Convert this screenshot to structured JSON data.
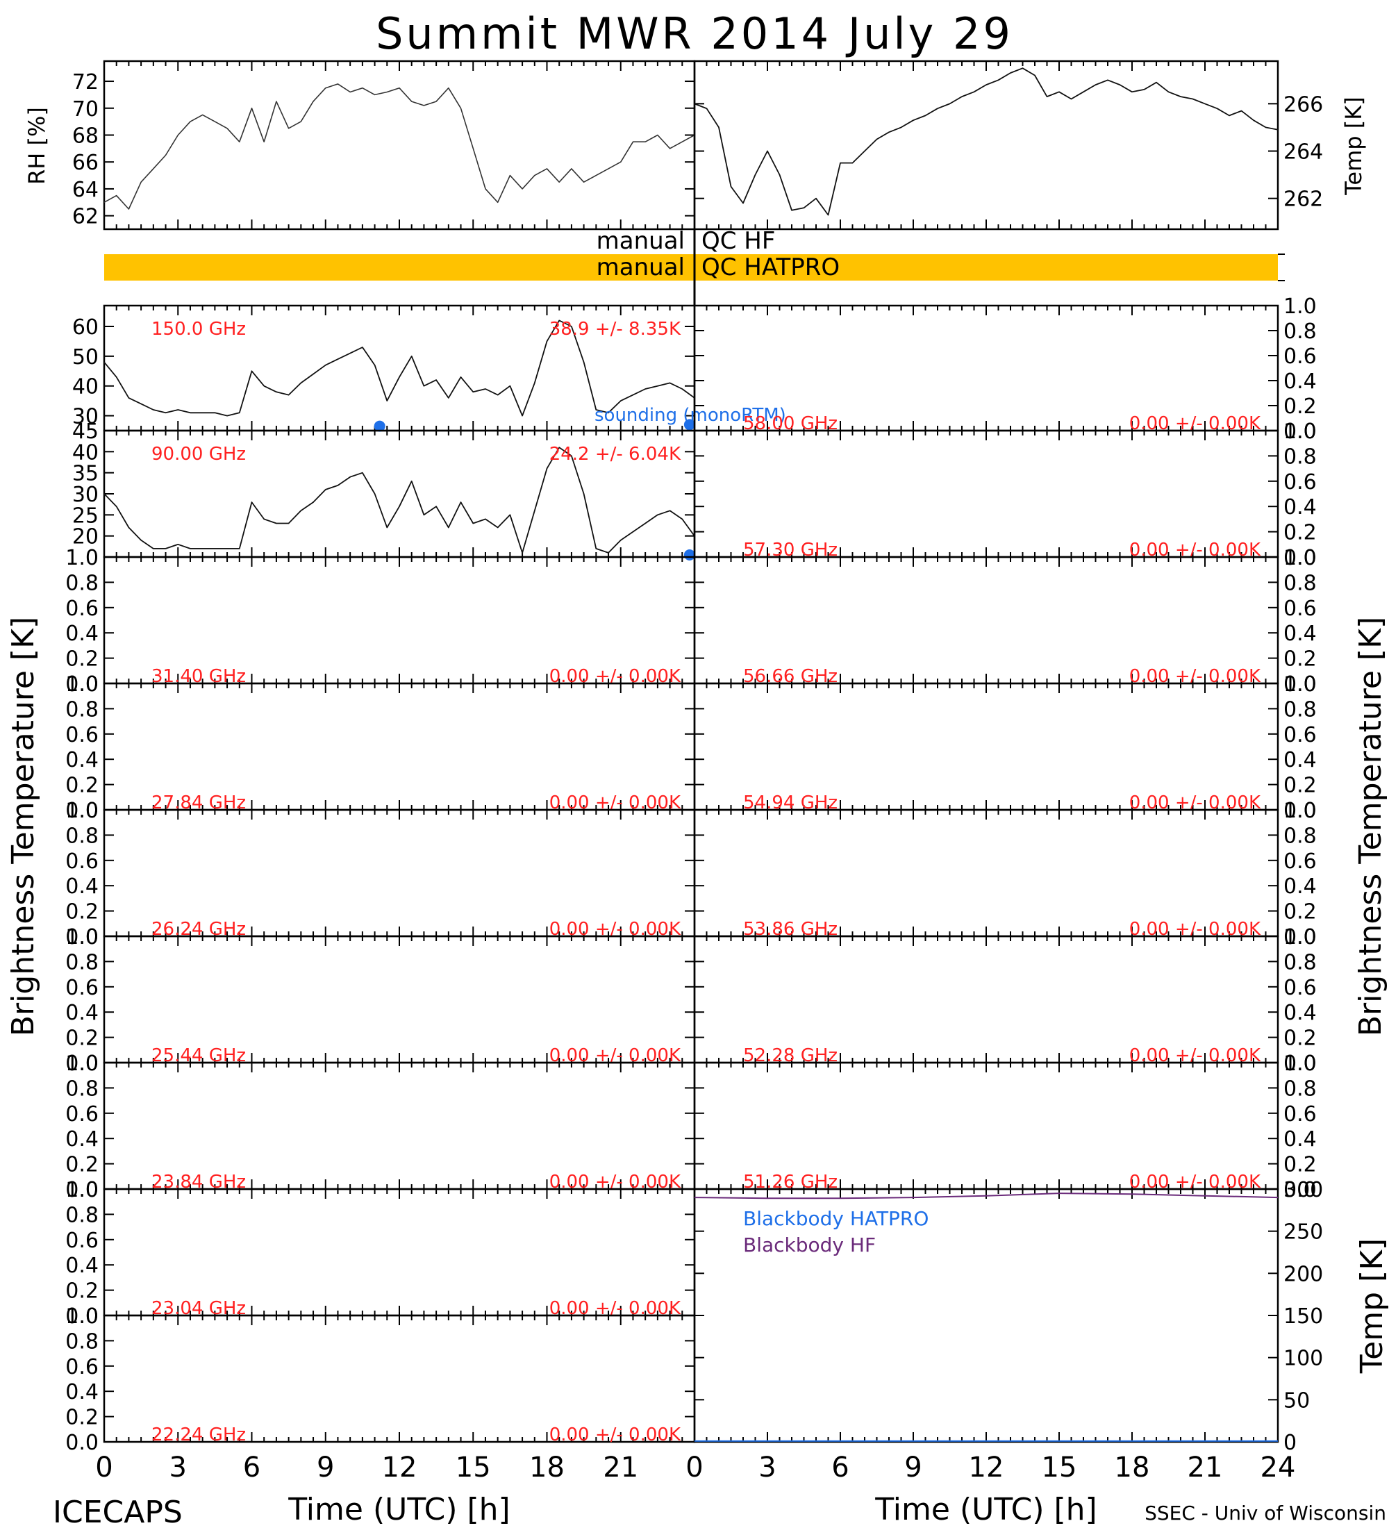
{
  "title": "Summit MWR 2014 July 29",
  "footer_left": "ICECAPS",
  "footer_right": "SSEC - Univ of Wisconsin",
  "xlabel": "Time (UTC) [h]",
  "ylabel_tb": "Brightness Temperature [K]",
  "colors": {
    "red": "#ff2020",
    "blue": "#1e6fe8",
    "purple": "#6a2a7a",
    "orange": "#ffc200"
  },
  "chart_data": [
    {
      "type": "line",
      "panel": "met-rh",
      "ylabel": "RH [%]",
      "ylim": [
        61,
        73.5
      ],
      "yticks": [
        62,
        64,
        66,
        68,
        70,
        72
      ],
      "xlim": [
        0,
        24
      ],
      "x": [
        0,
        0.5,
        1,
        1.5,
        2,
        2.5,
        3,
        3.5,
        4,
        4.5,
        5,
        5.5,
        6,
        6.5,
        7,
        7.5,
        8,
        8.5,
        9,
        9.5,
        10,
        10.5,
        11,
        11.5,
        12,
        12.5,
        13,
        13.5,
        14,
        14.5,
        15,
        15.5,
        16,
        16.5,
        17,
        17.5,
        18,
        18.5,
        19,
        19.5,
        20,
        20.5,
        21,
        21.5,
        22,
        22.5,
        23,
        23.5,
        24
      ],
      "y": [
        63,
        63.5,
        62.5,
        64.5,
        65.5,
        66.5,
        68,
        69,
        69.5,
        69,
        68.5,
        67.5,
        70,
        67.5,
        70.5,
        68.5,
        69,
        70.5,
        71.5,
        71.8,
        71.2,
        71.5,
        71,
        71.2,
        71.5,
        70.5,
        70.2,
        70.5,
        71.5,
        70,
        67,
        64,
        63,
        65,
        64,
        65,
        65.5,
        64.5,
        65.5,
        64.5,
        65,
        65.5,
        66,
        67.5,
        67.5,
        68,
        67,
        67.5,
        68
      ]
    },
    {
      "type": "line",
      "panel": "met-temp",
      "ylabel": "Temp [K]",
      "ylim": [
        260.7,
        267.8
      ],
      "yticks": [
        262,
        264,
        266
      ],
      "xlim": [
        0,
        24
      ],
      "x": [
        0,
        0.5,
        1,
        1.5,
        2,
        2.5,
        3,
        3.5,
        4,
        4.5,
        5,
        5.5,
        6,
        6.5,
        7,
        7.5,
        8,
        8.5,
        9,
        9.5,
        10,
        10.5,
        11,
        11.5,
        12,
        12.5,
        13,
        13.5,
        14,
        14.5,
        15,
        15.5,
        16,
        16.5,
        17,
        17.5,
        18,
        18.5,
        19,
        19.5,
        20,
        20.5,
        21,
        21.5,
        22,
        22.5,
        23,
        23.5,
        24
      ],
      "y": [
        266,
        265.8,
        265,
        262.5,
        261.8,
        263,
        264,
        263,
        261.5,
        261.6,
        262,
        261.3,
        263.5,
        263.5,
        264,
        264.5,
        264.8,
        265,
        265.3,
        265.5,
        265.8,
        266,
        266.3,
        266.5,
        266.8,
        267,
        267.3,
        267.5,
        267.2,
        266.3,
        266.5,
        266.2,
        266.5,
        266.8,
        267,
        266.8,
        266.5,
        266.6,
        266.9,
        266.5,
        266.3,
        266.2,
        266,
        265.8,
        265.5,
        265.7,
        265.3,
        265,
        264.9
      ]
    },
    {
      "type": "qc_bars",
      "panel": "qc",
      "rows": [
        {
          "label_left": "manual",
          "label_right": "QC HF",
          "filled": false
        },
        {
          "label_left": "manual",
          "label_right": "QC HATPRO",
          "filled": true
        }
      ]
    },
    {
      "type": "line",
      "panel": "tb-150",
      "freq_label": "150.0 GHz",
      "stat_label": "38.9 +/- 8.35K",
      "annotation": "sounding (monoRTM)",
      "ylim": [
        25,
        67
      ],
      "yticks": [
        30,
        40,
        50,
        60
      ],
      "xlim": [
        0,
        24
      ],
      "x": [
        0,
        0.5,
        1,
        1.5,
        2,
        2.5,
        3,
        3.5,
        4,
        4.5,
        5,
        5.5,
        6,
        6.5,
        7,
        7.5,
        8,
        8.5,
        9,
        9.5,
        10,
        10.5,
        11,
        11.5,
        12,
        12.5,
        13,
        13.5,
        14,
        14.5,
        15,
        15.5,
        16,
        16.5,
        17,
        17.5,
        18,
        18.5,
        19,
        19.5,
        20,
        20.5,
        21,
        21.5,
        22,
        22.5,
        23,
        23.5,
        24
      ],
      "y": [
        48,
        43,
        36,
        34,
        32,
        31,
        32,
        31,
        31,
        31,
        30,
        31,
        45,
        40,
        38,
        37,
        41,
        44,
        47,
        49,
        51,
        53,
        47,
        35,
        43,
        50,
        40,
        42,
        36,
        43,
        38,
        39,
        37,
        40,
        30,
        41,
        55,
        62,
        60,
        48,
        32,
        31,
        35,
        37,
        39,
        40,
        41,
        39,
        36
      ],
      "markers": [
        {
          "x": 11.2,
          "y": 26.5
        },
        {
          "x": 23.8,
          "y": 27
        }
      ]
    },
    {
      "type": "line",
      "panel": "tb-90",
      "freq_label": "90.00 GHz",
      "stat_label": "24.2 +/- 6.04K",
      "ylim": [
        15,
        45
      ],
      "yticks": [
        20,
        25,
        30,
        35,
        40,
        45
      ],
      "xlim": [
        0,
        24
      ],
      "x": [
        0,
        0.5,
        1,
        1.5,
        2,
        2.5,
        3,
        3.5,
        4,
        4.5,
        5,
        5.5,
        6,
        6.5,
        7,
        7.5,
        8,
        8.5,
        9,
        9.5,
        10,
        10.5,
        11,
        11.5,
        12,
        12.5,
        13,
        13.5,
        14,
        14.5,
        15,
        15.5,
        16,
        16.5,
        17,
        17.5,
        18,
        18.5,
        19,
        19.5,
        20,
        20.5,
        21,
        21.5,
        22,
        22.5,
        23,
        23.5,
        24
      ],
      "y": [
        30,
        27,
        22,
        19,
        17,
        17,
        18,
        17,
        17,
        17,
        17,
        17,
        28,
        24,
        23,
        23,
        26,
        28,
        31,
        32,
        34,
        35,
        30,
        22,
        27,
        33,
        25,
        27,
        22,
        28,
        23,
        24,
        22,
        25,
        16,
        26,
        36,
        41,
        39,
        30,
        17,
        16,
        19,
        21,
        23,
        25,
        26,
        24,
        20
      ],
      "markers": [
        {
          "x": 23.8,
          "y": 15.5
        }
      ]
    },
    {
      "type": "line",
      "panel": "tb-31.40",
      "freq_label": "31.40 GHz",
      "stat_label": "0.00 +/- 0.00K",
      "ylim": [
        0,
        1
      ],
      "yticks": [
        0.0,
        0.2,
        0.4,
        0.6,
        0.8,
        1.0
      ],
      "x": [],
      "y": []
    },
    {
      "type": "line",
      "panel": "tb-27.84",
      "freq_label": "27.84 GHz",
      "stat_label": "0.00 +/- 0.00K",
      "ylim": [
        0,
        1
      ],
      "yticks": [
        0.0,
        0.2,
        0.4,
        0.6,
        0.8,
        1.0
      ],
      "x": [],
      "y": []
    },
    {
      "type": "line",
      "panel": "tb-26.24",
      "freq_label": "26.24 GHz",
      "stat_label": "0.00 +/- 0.00K",
      "ylim": [
        0,
        1
      ],
      "yticks": [
        0.0,
        0.2,
        0.4,
        0.6,
        0.8,
        1.0
      ],
      "x": [],
      "y": []
    },
    {
      "type": "line",
      "panel": "tb-25.44",
      "freq_label": "25.44 GHz",
      "stat_label": "0.00 +/- 0.00K",
      "ylim": [
        0,
        1
      ],
      "yticks": [
        0.0,
        0.2,
        0.4,
        0.6,
        0.8,
        1.0
      ],
      "x": [],
      "y": []
    },
    {
      "type": "line",
      "panel": "tb-23.84",
      "freq_label": "23.84 GHz",
      "stat_label": "0.00 +/- 0.00K",
      "ylim": [
        0,
        1
      ],
      "yticks": [
        0.0,
        0.2,
        0.4,
        0.6,
        0.8,
        1.0
      ],
      "x": [],
      "y": []
    },
    {
      "type": "line",
      "panel": "tb-23.04",
      "freq_label": "23.04 GHz",
      "stat_label": "0.00 +/- 0.00K",
      "ylim": [
        0,
        1
      ],
      "yticks": [
        0.0,
        0.2,
        0.4,
        0.6,
        0.8,
        1.0
      ],
      "x": [],
      "y": []
    },
    {
      "type": "line",
      "panel": "tb-22.24",
      "freq_label": "22.24 GHz",
      "stat_label": "0.00 +/- 0.00K",
      "ylim": [
        0,
        1
      ],
      "yticks": [
        0.0,
        0.2,
        0.4,
        0.6,
        0.8,
        1.0
      ],
      "x": [],
      "y": []
    },
    {
      "type": "line",
      "panel": "tb-58.00",
      "freq_label": "58.00 GHz",
      "stat_label": "0.00 +/- 0.00K",
      "ylim": [
        0,
        1
      ],
      "yticks": [
        0.0,
        0.2,
        0.4,
        0.6,
        0.8,
        1.0
      ],
      "x": [],
      "y": []
    },
    {
      "type": "line",
      "panel": "tb-57.30",
      "freq_label": "57.30 GHz",
      "stat_label": "0.00 +/- 0.00K",
      "ylim": [
        0,
        1
      ],
      "yticks": [
        0.0,
        0.2,
        0.4,
        0.6,
        0.8,
        1.0
      ],
      "x": [],
      "y": []
    },
    {
      "type": "line",
      "panel": "tb-56.66",
      "freq_label": "56.66 GHz",
      "stat_label": "0.00 +/- 0.00K",
      "ylim": [
        0,
        1
      ],
      "yticks": [
        0.0,
        0.2,
        0.4,
        0.6,
        0.8,
        1.0
      ],
      "x": [],
      "y": []
    },
    {
      "type": "line",
      "panel": "tb-54.94",
      "freq_label": "54.94 GHz",
      "stat_label": "0.00 +/- 0.00K",
      "ylim": [
        0,
        1
      ],
      "yticks": [
        0.0,
        0.2,
        0.4,
        0.6,
        0.8,
        1.0
      ],
      "x": [],
      "y": []
    },
    {
      "type": "line",
      "panel": "tb-53.86",
      "freq_label": "53.86 GHz",
      "stat_label": "0.00 +/- 0.00K",
      "ylim": [
        0,
        1
      ],
      "yticks": [
        0.0,
        0.2,
        0.4,
        0.6,
        0.8,
        1.0
      ],
      "x": [],
      "y": []
    },
    {
      "type": "line",
      "panel": "tb-52.28",
      "freq_label": "52.28 GHz",
      "stat_label": "0.00 +/- 0.00K",
      "ylim": [
        0,
        1
      ],
      "yticks": [
        0.0,
        0.2,
        0.4,
        0.6,
        0.8,
        1.0
      ],
      "x": [],
      "y": []
    },
    {
      "type": "line",
      "panel": "tb-51.26",
      "freq_label": "51.26 GHz",
      "stat_label": "0.00 +/- 0.00K",
      "ylim": [
        0,
        1
      ],
      "yticks": [
        0.0,
        0.2,
        0.4,
        0.6,
        0.8,
        1.0
      ],
      "x": [],
      "y": []
    },
    {
      "type": "line",
      "panel": "blackbody",
      "ylabel": "Temp [K]",
      "ylim": [
        0,
        300
      ],
      "yticks": [
        0,
        50,
        100,
        150,
        200,
        250,
        300
      ],
      "xlim": [
        0,
        24
      ],
      "series": [
        {
          "name": "Blackbody HATPRO",
          "color": "#1e6fe8",
          "x": [
            0,
            24
          ],
          "y": [
            1,
            1
          ]
        },
        {
          "name": "Blackbody HF",
          "color": "#6a2a7a",
          "x": [
            0,
            3,
            6,
            9,
            12,
            15,
            18,
            21,
            24
          ],
          "y": [
            290,
            289,
            289,
            290,
            292,
            295,
            294,
            292,
            290
          ]
        }
      ]
    }
  ],
  "xaxis": {
    "ticks": [
      "0",
      "3",
      "6",
      "9",
      "12",
      "15",
      "18",
      "21",
      "24"
    ]
  }
}
